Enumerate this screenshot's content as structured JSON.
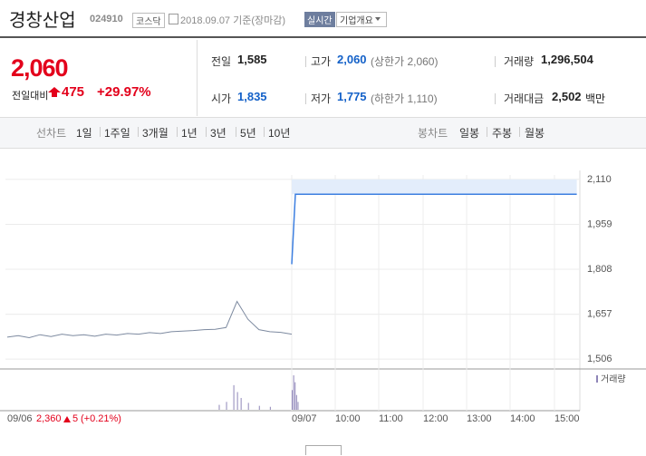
{
  "header": {
    "name": "경창산업",
    "code": "024910",
    "market": "코스닥",
    "date": "2018.09.07 기준(장마감)",
    "realtime": "실시간",
    "overview": "기업개요"
  },
  "quote": {
    "price": "2,060",
    "change_label": "전일대비",
    "change": "475",
    "change_pct": "+29.97%"
  },
  "stats": [
    {
      "label": "전일",
      "value": "1,585"
    },
    {
      "label": "고가",
      "value": "2,060",
      "note": "(상한가 2,060)"
    },
    {
      "label": "거래량",
      "value": "1,296,504"
    },
    {
      "label": "시가",
      "value": "1,835"
    },
    {
      "label": "저가",
      "value": "1,775",
      "note": "(하한가 1,110)"
    },
    {
      "label": "거래대금",
      "value": "2,502",
      "note": "백만"
    }
  ],
  "tabs": {
    "line_label": "선차트",
    "line_periods": [
      "1일",
      "1주일",
      "3개월",
      "1년",
      "3년",
      "5년",
      "10년"
    ],
    "candle_label": "봉차트",
    "candle_periods": [
      "일봉",
      "주봉",
      "월봉"
    ]
  },
  "prev_day_info": {
    "price": "2,360",
    "change": "5",
    "change_pct": "(+0.21%)"
  },
  "chart_data": {
    "type": "line",
    "ylim": [
      1479,
      2195
    ],
    "yticks": [
      {
        "value": 1506,
        "label": "1,506"
      },
      {
        "value": 1657,
        "label": "1,657"
      },
      {
        "value": 1808,
        "label": "1,808"
      },
      {
        "value": 1959,
        "label": "1,959"
      },
      {
        "value": 2110,
        "label": "2,110"
      }
    ],
    "x_labels": [
      "09/06",
      "09/07",
      "10:00",
      "11:00",
      "12:00",
      "13:00",
      "14:00",
      "15:00"
    ],
    "series": [
      {
        "color": "#7d8aa0",
        "x": [
          "09:00",
          "09:15",
          "09:30",
          "09:45",
          "10:00",
          "10:15",
          "10:30",
          "10:45",
          "11:00",
          "11:15",
          "11:30",
          "11:45",
          "12:00",
          "12:15",
          "12:30",
          "12:45",
          "13:00",
          "13:15",
          "13:30",
          "13:45",
          "14:00",
          "14:15",
          "14:30",
          "14:45",
          "15:00",
          "15:15",
          "15:30"
        ],
        "values": [
          1580,
          1585,
          1578,
          1588,
          1582,
          1590,
          1585,
          1588,
          1583,
          1590,
          1587,
          1592,
          1590,
          1595,
          1592,
          1598,
          1600,
          1602,
          1605,
          1606,
          1612,
          1700,
          1640,
          1605,
          1598,
          1596,
          1590
        ]
      },
      {
        "color": "#3d7fe0",
        "x": [
          "09:00",
          "09:05",
          "15:30"
        ],
        "values": [
          1825,
          2060,
          2060
        ]
      }
    ],
    "volume": {
      "name": "거래량",
      "color": "#8f86b8",
      "prev_day": {
        "x": [
          "13:50",
          "14:00",
          "14:10",
          "14:15",
          "14:20",
          "14:30",
          "14:45",
          "15:00"
        ],
        "values": [
          5,
          8,
          25,
          18,
          12,
          7,
          4,
          3
        ]
      },
      "today": {
        "x": [
          "09:00",
          "09:02",
          "09:04",
          "09:06",
          "09:08"
        ],
        "values": [
          20,
          35,
          28,
          15,
          8
        ]
      }
    }
  }
}
